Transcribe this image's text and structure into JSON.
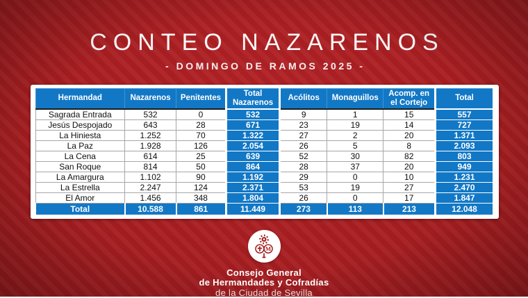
{
  "header": {
    "title": "CONTEO NAZARENOS",
    "subtitle": "- DOMINGO DE RAMOS 2025 -"
  },
  "chart_data": {
    "type": "table",
    "title": "CONTEO NAZARENOS",
    "subtitle": "- DOMINGO DE RAMOS 2025 -",
    "columns": [
      "Hermandad",
      "Nazarenos",
      "Penitentes",
      "Total Nazarenos",
      "Acólitos",
      "Monaguillos",
      "Acomp. en el Cortejo",
      "Total"
    ],
    "highlight_columns": [
      3,
      7
    ],
    "rows": [
      [
        "Sagrada Entrada",
        "532",
        "0",
        "532",
        "9",
        "1",
        "15",
        "557"
      ],
      [
        "Jesús Despojado",
        "643",
        "28",
        "671",
        "23",
        "19",
        "14",
        "727"
      ],
      [
        "La Hiniesta",
        "1.252",
        "70",
        "1.322",
        "27",
        "2",
        "20",
        "1.371"
      ],
      [
        "La Paz",
        "1.928",
        "126",
        "2.054",
        "26",
        "5",
        "8",
        "2.093"
      ],
      [
        "La Cena",
        "614",
        "25",
        "639",
        "52",
        "30",
        "82",
        "803"
      ],
      [
        "San Roque",
        "814",
        "50",
        "864",
        "28",
        "37",
        "20",
        "949"
      ],
      [
        "La Amargura",
        "1.102",
        "90",
        "1.192",
        "29",
        "0",
        "10",
        "1.231"
      ],
      [
        "La Estrella",
        "2.247",
        "124",
        "2.371",
        "53",
        "19",
        "27",
        "2.470"
      ],
      [
        "El Amor",
        "1.456",
        "348",
        "1.804",
        "26",
        "0",
        "17",
        "1.847"
      ]
    ],
    "total_row": [
      "Total",
      "10.588",
      "861",
      "11.449",
      "273",
      "113",
      "213",
      "12.048"
    ]
  },
  "footer": {
    "org_line1": "Consejo General",
    "org_line2": "de Hermandades y Cofradías",
    "org_line3": "de la Ciudad de Sevilla"
  },
  "colors": {
    "background_red": "#a81e21",
    "accent_blue": "#1278c6",
    "text_white": "#ffffff",
    "cell_border": "#a6a6a6"
  }
}
